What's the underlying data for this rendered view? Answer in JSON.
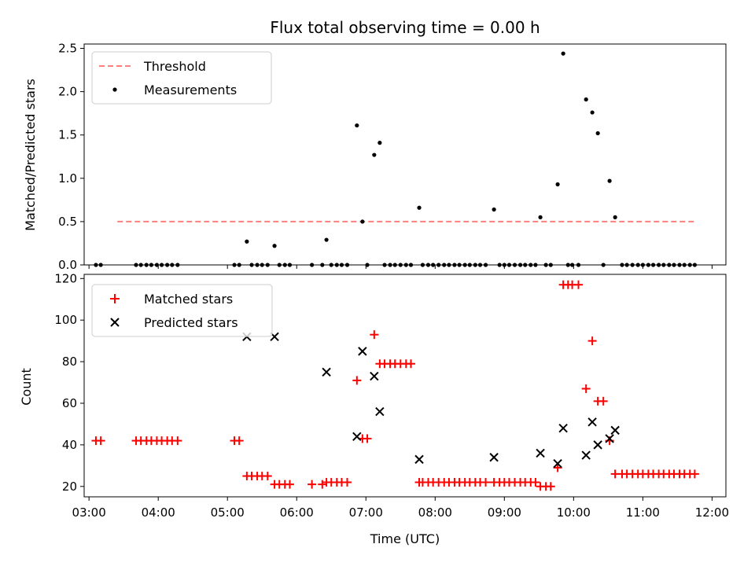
{
  "chart_data": {
    "title": "Flux total observing time = 0.00 h",
    "xlabel": "Time (UTC)",
    "xlim": [
      2.93,
      12.2
    ],
    "xticks": [
      {
        "v": 3,
        "label": "03:00"
      },
      {
        "v": 4,
        "label": "04:00"
      },
      {
        "v": 5,
        "label": "05:00"
      },
      {
        "v": 6,
        "label": "06:00"
      },
      {
        "v": 7,
        "label": "07:00"
      },
      {
        "v": 8,
        "label": "08:00"
      },
      {
        "v": 9,
        "label": "09:00"
      },
      {
        "v": 10,
        "label": "10:00"
      },
      {
        "v": 11,
        "label": "11:00"
      },
      {
        "v": 12,
        "label": "12:00"
      }
    ],
    "top": {
      "type": "scatter",
      "ylabel": "Matched/Predicted stars",
      "ylim": [
        0,
        2.55
      ],
      "yticks": [
        {
          "v": 0,
          "label": "0.0"
        },
        {
          "v": 0.5,
          "label": "0.5"
        },
        {
          "v": 1,
          "label": "1.0"
        },
        {
          "v": 1.5,
          "label": "1.5"
        },
        {
          "v": 2,
          "label": "2.0"
        },
        {
          "v": 2.5,
          "label": "2.5"
        }
      ],
      "threshold": {
        "name": "Threshold",
        "y": 0.5,
        "x": [
          3.41,
          11.77
        ],
        "color": "#ff7f7f"
      },
      "measurements": {
        "name": "Measurements",
        "color": "#000000",
        "points": [
          [
            3.1,
            0
          ],
          [
            3.17,
            0
          ],
          [
            3.68,
            0
          ],
          [
            3.75,
            0
          ],
          [
            3.83,
            0
          ],
          [
            3.9,
            0
          ],
          [
            3.98,
            0
          ],
          [
            4.05,
            0
          ],
          [
            4.13,
            0
          ],
          [
            4.2,
            0
          ],
          [
            4.28,
            0
          ],
          [
            5.1,
            0
          ],
          [
            5.17,
            0
          ],
          [
            5.28,
            0.27
          ],
          [
            5.35,
            0
          ],
          [
            5.43,
            0
          ],
          [
            5.5,
            0
          ],
          [
            5.58,
            0
          ],
          [
            5.68,
            0.22
          ],
          [
            5.75,
            0
          ],
          [
            5.83,
            0
          ],
          [
            5.9,
            0
          ],
          [
            6.22,
            0
          ],
          [
            6.37,
            0
          ],
          [
            6.43,
            0.29
          ],
          [
            6.5,
            0
          ],
          [
            6.58,
            0
          ],
          [
            6.65,
            0
          ],
          [
            6.73,
            0
          ],
          [
            6.87,
            1.61
          ],
          [
            6.95,
            0.5
          ],
          [
            7.02,
            0
          ],
          [
            7.12,
            1.27
          ],
          [
            7.2,
            1.41
          ],
          [
            7.27,
            0
          ],
          [
            7.35,
            0
          ],
          [
            7.42,
            0
          ],
          [
            7.5,
            0
          ],
          [
            7.58,
            0
          ],
          [
            7.65,
            0
          ],
          [
            7.77,
            0.66
          ],
          [
            7.82,
            0
          ],
          [
            7.9,
            0
          ],
          [
            7.97,
            0
          ],
          [
            8.05,
            0
          ],
          [
            8.13,
            0
          ],
          [
            8.2,
            0
          ],
          [
            8.28,
            0
          ],
          [
            8.35,
            0
          ],
          [
            8.43,
            0
          ],
          [
            8.5,
            0
          ],
          [
            8.58,
            0
          ],
          [
            8.65,
            0
          ],
          [
            8.73,
            0
          ],
          [
            8.85,
            0.64
          ],
          [
            8.93,
            0
          ],
          [
            9.0,
            0
          ],
          [
            9.07,
            0
          ],
          [
            9.15,
            0
          ],
          [
            9.23,
            0
          ],
          [
            9.3,
            0
          ],
          [
            9.38,
            0
          ],
          [
            9.45,
            0
          ],
          [
            9.52,
            0.55
          ],
          [
            9.6,
            0
          ],
          [
            9.67,
            0
          ],
          [
            9.77,
            0.93
          ],
          [
            9.85,
            2.44
          ],
          [
            9.92,
            0
          ],
          [
            9.98,
            0
          ],
          [
            10.07,
            0
          ],
          [
            10.18,
            1.91
          ],
          [
            10.27,
            1.76
          ],
          [
            10.35,
            1.52
          ],
          [
            10.43,
            0
          ],
          [
            10.52,
            0.97
          ],
          [
            10.6,
            0.55
          ],
          [
            10.7,
            0
          ],
          [
            10.77,
            0
          ],
          [
            10.85,
            0
          ],
          [
            10.93,
            0
          ],
          [
            11.0,
            0
          ],
          [
            11.08,
            0
          ],
          [
            11.15,
            0
          ],
          [
            11.23,
            0
          ],
          [
            11.3,
            0
          ],
          [
            11.38,
            0
          ],
          [
            11.45,
            0
          ],
          [
            11.53,
            0
          ],
          [
            11.6,
            0
          ],
          [
            11.68,
            0
          ],
          [
            11.75,
            0
          ]
        ]
      },
      "legend": "top-left"
    },
    "bottom": {
      "type": "scatter",
      "ylabel": "Count",
      "ylim": [
        15,
        122
      ],
      "yticks": [
        {
          "v": 20,
          "label": "20"
        },
        {
          "v": 40,
          "label": "40"
        },
        {
          "v": 60,
          "label": "60"
        },
        {
          "v": 80,
          "label": "80"
        },
        {
          "v": 100,
          "label": "100"
        },
        {
          "v": 120,
          "label": "120"
        }
      ],
      "matched": {
        "name": "Matched stars",
        "color": "#ff0000",
        "points": [
          [
            3.1,
            42
          ],
          [
            3.17,
            42
          ],
          [
            3.68,
            42
          ],
          [
            3.75,
            42
          ],
          [
            3.83,
            42
          ],
          [
            3.9,
            42
          ],
          [
            3.98,
            42
          ],
          [
            4.05,
            42
          ],
          [
            4.13,
            42
          ],
          [
            4.2,
            42
          ],
          [
            4.28,
            42
          ],
          [
            5.1,
            42
          ],
          [
            5.17,
            42
          ],
          [
            5.28,
            25
          ],
          [
            5.35,
            25
          ],
          [
            5.43,
            25
          ],
          [
            5.5,
            25
          ],
          [
            5.58,
            25
          ],
          [
            5.68,
            21
          ],
          [
            5.75,
            21
          ],
          [
            5.83,
            21
          ],
          [
            5.9,
            21
          ],
          [
            6.22,
            21
          ],
          [
            6.37,
            21
          ],
          [
            6.43,
            22
          ],
          [
            6.5,
            22
          ],
          [
            6.58,
            22
          ],
          [
            6.65,
            22
          ],
          [
            6.73,
            22
          ],
          [
            6.87,
            71
          ],
          [
            6.95,
            43
          ],
          [
            7.02,
            43
          ],
          [
            7.12,
            93
          ],
          [
            7.2,
            79
          ],
          [
            7.27,
            79
          ],
          [
            7.35,
            79
          ],
          [
            7.42,
            79
          ],
          [
            7.5,
            79
          ],
          [
            7.58,
            79
          ],
          [
            7.65,
            79
          ],
          [
            7.77,
            22
          ],
          [
            7.82,
            22
          ],
          [
            7.9,
            22
          ],
          [
            7.97,
            22
          ],
          [
            8.05,
            22
          ],
          [
            8.13,
            22
          ],
          [
            8.2,
            22
          ],
          [
            8.28,
            22
          ],
          [
            8.35,
            22
          ],
          [
            8.43,
            22
          ],
          [
            8.5,
            22
          ],
          [
            8.58,
            22
          ],
          [
            8.65,
            22
          ],
          [
            8.73,
            22
          ],
          [
            8.85,
            22
          ],
          [
            8.93,
            22
          ],
          [
            9.0,
            22
          ],
          [
            9.07,
            22
          ],
          [
            9.15,
            22
          ],
          [
            9.23,
            22
          ],
          [
            9.3,
            22
          ],
          [
            9.38,
            22
          ],
          [
            9.45,
            22
          ],
          [
            9.52,
            20
          ],
          [
            9.6,
            20
          ],
          [
            9.67,
            20
          ],
          [
            9.77,
            29
          ],
          [
            9.85,
            117
          ],
          [
            9.92,
            117
          ],
          [
            9.98,
            117
          ],
          [
            10.07,
            117
          ],
          [
            10.18,
            67
          ],
          [
            10.27,
            90
          ],
          [
            10.35,
            61
          ],
          [
            10.43,
            61
          ],
          [
            10.52,
            42
          ],
          [
            10.6,
            26
          ],
          [
            10.7,
            26
          ],
          [
            10.77,
            26
          ],
          [
            10.85,
            26
          ],
          [
            10.93,
            26
          ],
          [
            11.0,
            26
          ],
          [
            11.08,
            26
          ],
          [
            11.15,
            26
          ],
          [
            11.23,
            26
          ],
          [
            11.3,
            26
          ],
          [
            11.38,
            26
          ],
          [
            11.45,
            26
          ],
          [
            11.53,
            26
          ],
          [
            11.6,
            26
          ],
          [
            11.68,
            26
          ],
          [
            11.75,
            26
          ]
        ]
      },
      "predicted": {
        "name": "Predicted stars",
        "color": "#000000",
        "points": [
          [
            5.28,
            92
          ],
          [
            5.68,
            92
          ],
          [
            6.43,
            75
          ],
          [
            6.87,
            44
          ],
          [
            6.95,
            85
          ],
          [
            7.12,
            73
          ],
          [
            7.2,
            56
          ],
          [
            7.77,
            33
          ],
          [
            8.85,
            34
          ],
          [
            9.52,
            36
          ],
          [
            9.77,
            31
          ],
          [
            9.85,
            48
          ],
          [
            10.18,
            35
          ],
          [
            10.27,
            51
          ],
          [
            10.35,
            40
          ],
          [
            10.52,
            43
          ],
          [
            10.6,
            47
          ]
        ]
      },
      "legend": "top-left"
    }
  }
}
